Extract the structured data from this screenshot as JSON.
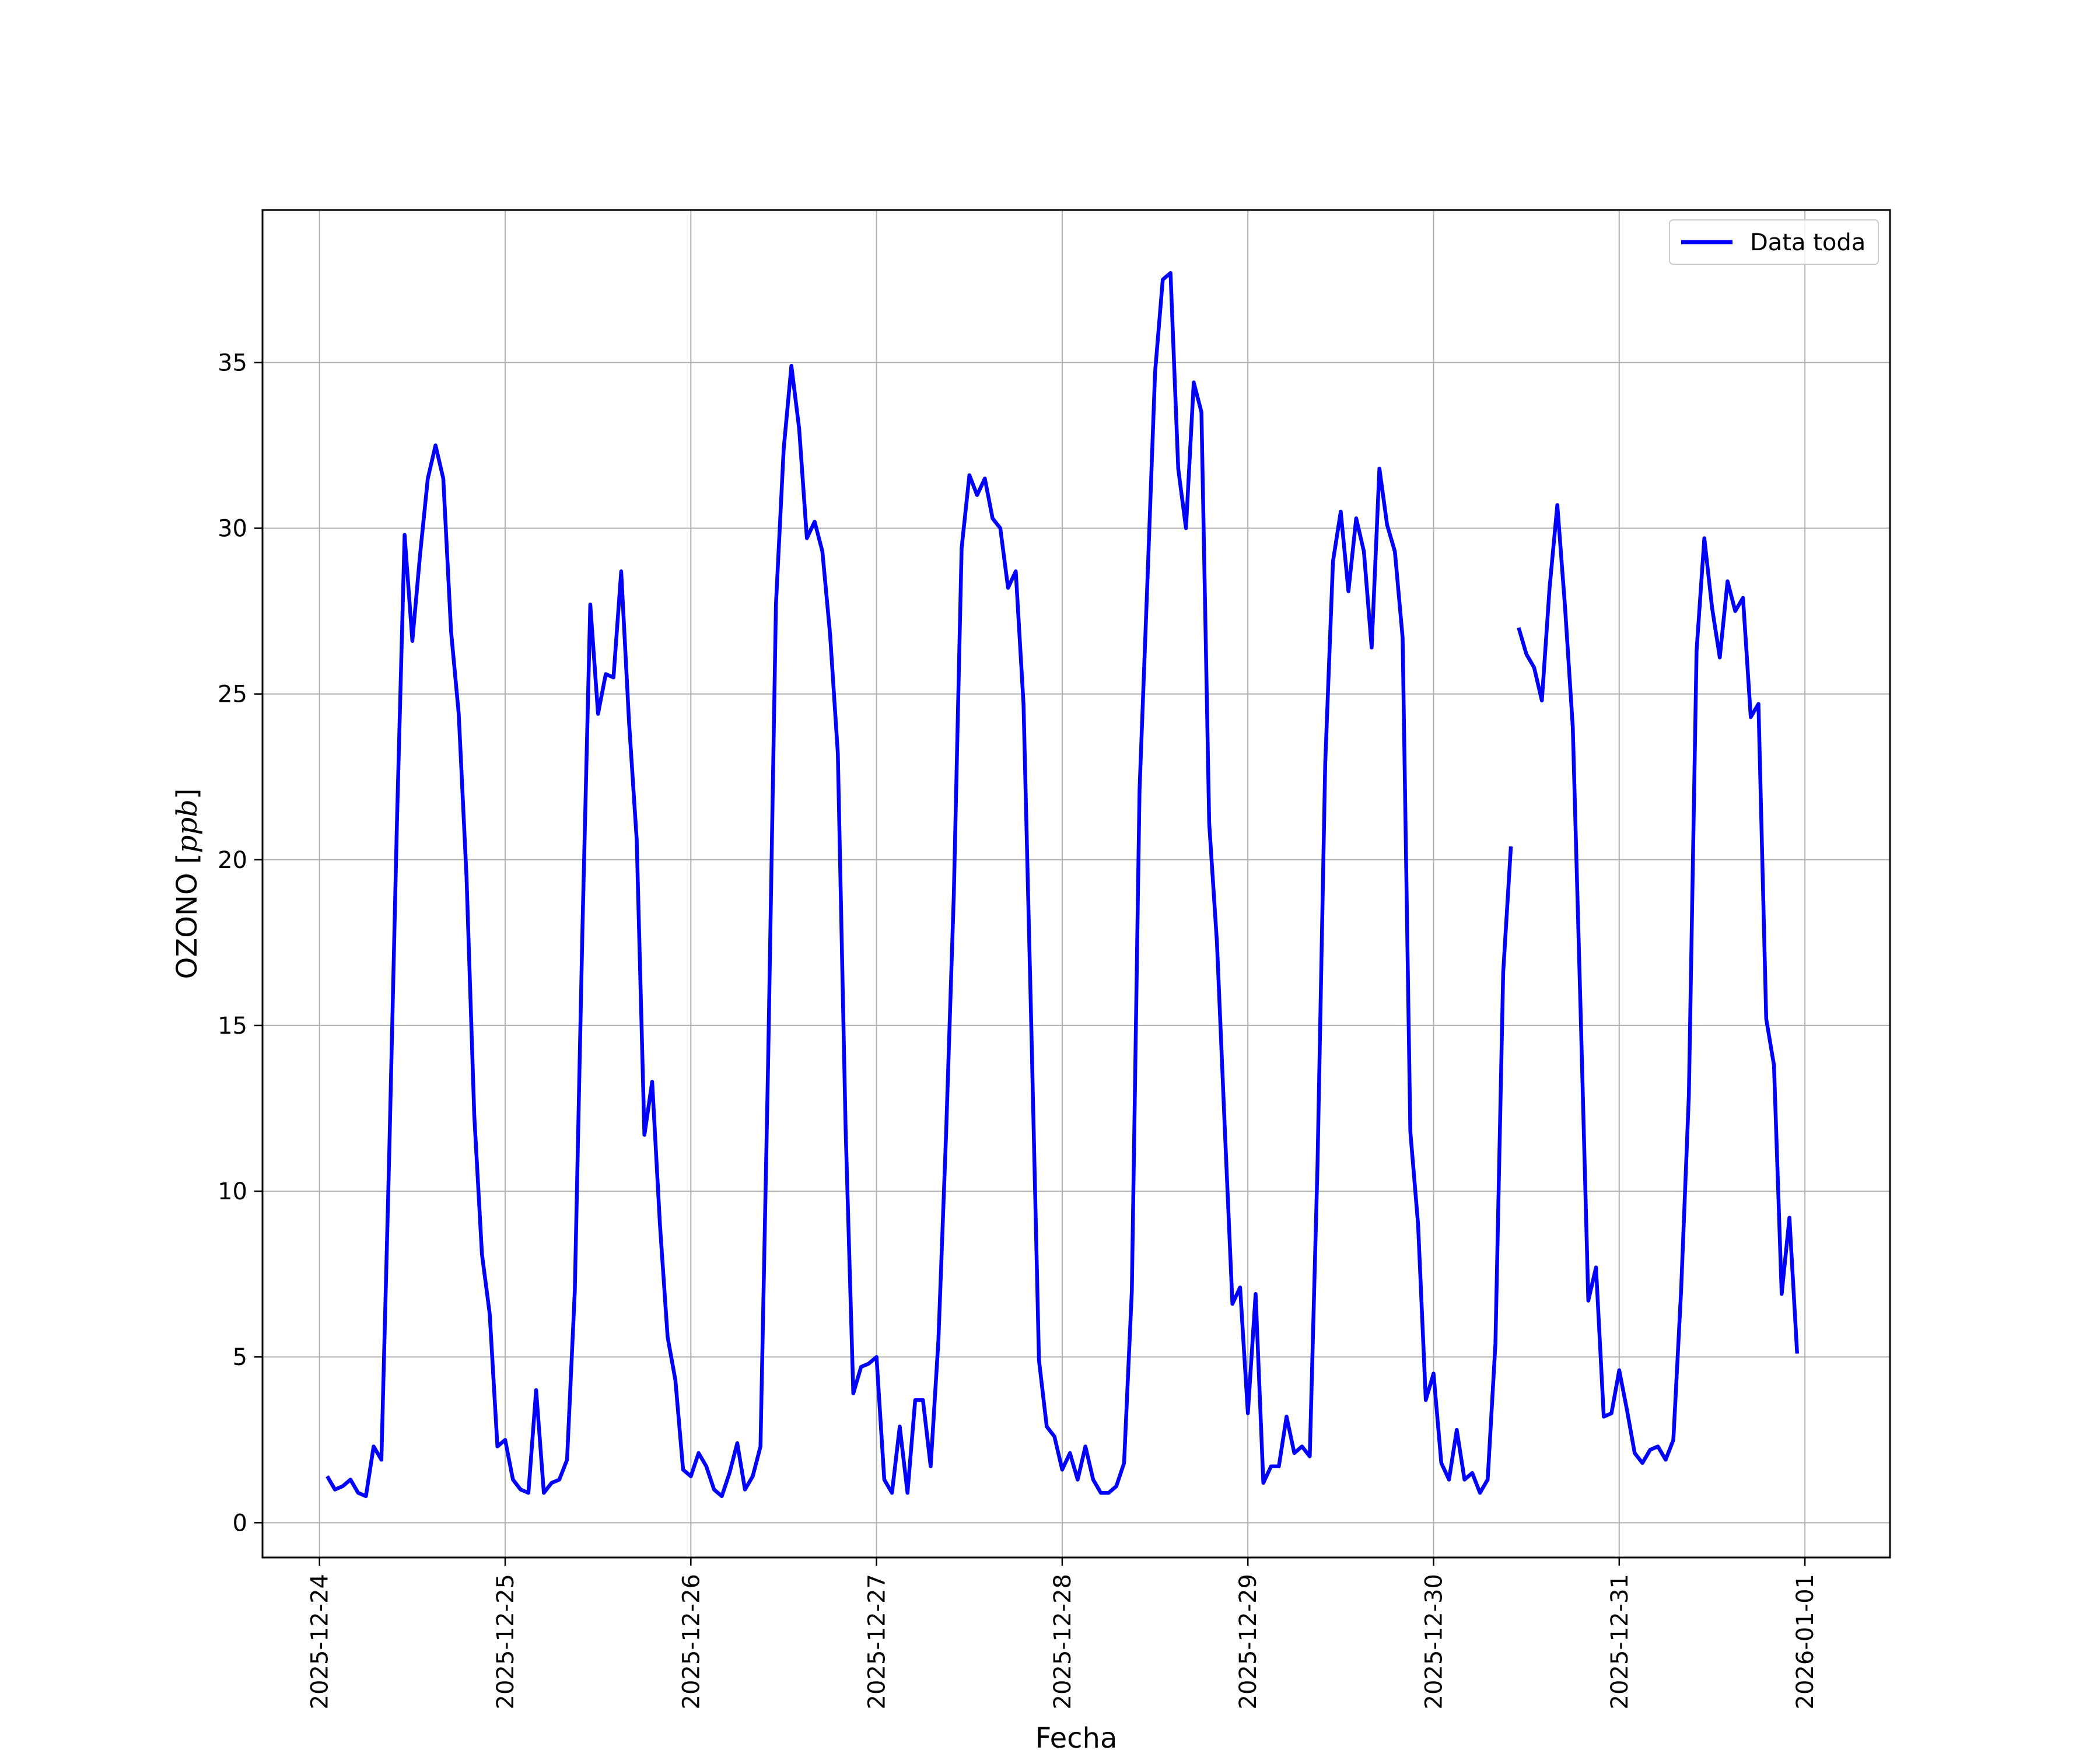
{
  "chart_data": {
    "type": "line",
    "title": "",
    "xlabel": "Fecha",
    "ylabel": "OZONO [ppb]",
    "ylabel_parts": {
      "main": "OZONO ",
      "unit": "ppb"
    },
    "xlim": [
      "2025-12-23 16:38",
      "2026-01-01 11:00"
    ],
    "ylim": [
      -1.05,
      39.6
    ],
    "yticks": [
      0,
      5,
      10,
      15,
      20,
      25,
      30,
      35
    ],
    "xticks": [
      "2025-12-24",
      "2025-12-25",
      "2025-12-26",
      "2025-12-27",
      "2025-12-28",
      "2025-12-29",
      "2025-12-30",
      "2025-12-31",
      "2026-01-01"
    ],
    "grid": true,
    "legend_position": "top-right",
    "x_step": "1h",
    "series": [
      {
        "name": "Data toda",
        "color": "#0000ff",
        "segments": [
          {
            "start": "2025-12-24 01:00",
            "values": [
              1.4,
              1.0,
              1.1,
              1.3,
              0.9,
              0.8,
              2.3,
              1.9,
              11.0,
              21.0,
              29.8,
              26.6,
              29.2,
              31.5,
              32.5,
              31.5,
              26.9,
              24.4,
              19.5,
              12.3,
              8.1,
              6.3,
              2.3,
              2.5,
              1.3,
              1.0,
              0.9,
              4.0,
              0.9,
              1.2,
              1.3,
              1.9,
              7.0,
              18.0,
              27.7,
              24.4,
              25.6,
              25.5,
              28.7,
              24.2,
              20.6,
              11.7,
              13.3,
              9.0,
              5.6,
              4.3,
              1.6,
              1.4,
              2.1,
              1.7,
              1.0,
              0.8,
              1.5,
              2.4,
              1.0,
              1.4,
              2.3,
              14.0,
              27.7,
              32.4,
              34.9,
              33.0,
              29.7,
              30.2,
              29.3,
              26.8,
              23.2,
              11.9,
              3.9,
              4.7,
              4.8,
              5.0,
              1.3,
              0.9,
              2.9,
              0.9,
              3.7,
              3.7,
              1.7,
              5.5,
              11.8,
              19.0,
              29.4,
              31.6,
              31.0,
              31.5,
              30.3,
              30.0,
              28.2,
              28.7,
              24.7,
              15.0,
              4.9,
              2.9,
              2.6,
              1.6,
              2.1,
              1.3,
              2.3,
              1.3,
              0.9,
              0.9,
              1.1,
              1.8,
              7.0,
              22.1,
              28.3,
              34.7,
              37.5,
              37.7,
              31.8,
              30.0,
              34.4,
              33.5,
              21.1,
              17.5,
              12.0,
              6.6,
              7.1,
              3.3,
              6.9,
              1.2,
              1.7,
              1.7,
              3.2,
              2.1,
              2.3,
              2.0,
              10.8,
              22.9,
              29.0,
              30.5,
              28.1,
              30.3,
              29.3,
              26.4,
              31.8,
              30.1,
              29.3,
              26.7,
              11.8,
              9.0,
              3.7,
              4.5,
              1.8,
              1.3,
              2.8,
              1.3,
              1.5,
              0.9,
              1.3,
              5.4,
              16.6,
              20.4
            ]
          },
          {
            "start": "2025-12-30 11:00",
            "values": [
              27.0,
              26.2,
              25.8,
              24.8,
              28.2,
              30.7,
              27.6,
              24.0,
              15.5,
              6.7,
              7.7,
              3.2,
              3.3,
              4.6,
              3.4,
              2.1,
              1.8,
              2.2,
              2.3,
              1.9,
              2.5,
              7.0,
              12.9,
              26.3,
              29.7,
              27.6,
              26.1,
              28.4,
              27.5,
              27.9,
              24.3,
              24.7,
              15.2,
              13.8,
              6.9,
              9.2,
              5.1
            ]
          }
        ]
      }
    ]
  }
}
